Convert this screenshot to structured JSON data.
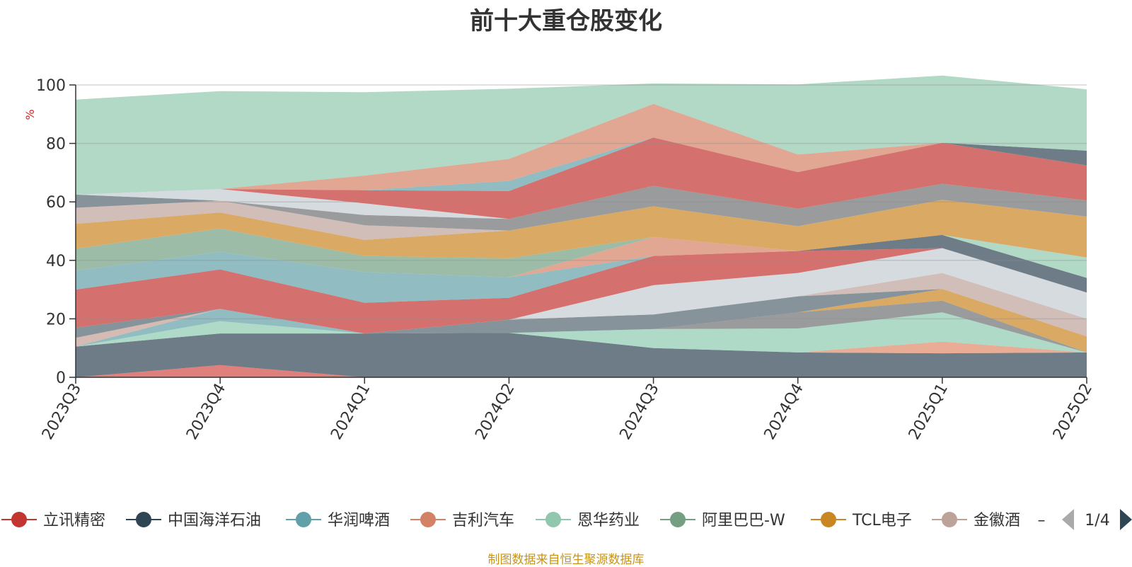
{
  "chart_data": {
    "type": "area",
    "stacked": true,
    "title": "前十大重仓股变化",
    "ylabel": "%",
    "ylim": [
      0,
      100
    ],
    "yticks": [
      0,
      20,
      40,
      60,
      80,
      100
    ],
    "grid": true,
    "legend_position": "bottom",
    "legend_page": "1/4",
    "legend_more_marker": "–",
    "categories": [
      "2023Q3",
      "2023Q4",
      "2024Q1",
      "2024Q2",
      "2024Q3",
      "2024Q4",
      "2025Q1",
      "2025Q2"
    ],
    "layers": [
      {
        "color": "#d14a44",
        "values": [
          0,
          4.2,
          0,
          0,
          0,
          0,
          0,
          0
        ]
      },
      {
        "color": "#2f4554",
        "values": [
          10.5,
          10.8,
          15,
          15.2,
          10,
          8.5,
          8.2,
          8.5
        ]
      },
      {
        "color": "#de8a66",
        "values": [
          0,
          0,
          0,
          0,
          0,
          0,
          4,
          0
        ]
      },
      {
        "color": "#8ccbaf",
        "values": [
          0,
          4.2,
          0,
          0,
          6.5,
          8.2,
          10,
          0
        ]
      },
      {
        "color": "#61a0a8",
        "values": [
          0,
          4.2,
          0,
          0,
          0,
          0,
          0,
          0
        ]
      },
      {
        "color": "#c49c94",
        "values": [
          3,
          0,
          0,
          0,
          0,
          0,
          0,
          0
        ]
      },
      {
        "color": "#6e7074",
        "values": [
          0,
          0,
          0,
          0,
          0,
          5.5,
          4,
          0
        ]
      },
      {
        "color": "#c23531",
        "values": [
          0,
          0,
          0,
          0,
          0,
          0,
          0,
          0
        ]
      },
      {
        "color": "#ca8622",
        "values": [
          0,
          0,
          0,
          0,
          0,
          0,
          4,
          5.5
        ]
      },
      {
        "color": "#546570",
        "values": [
          3.5,
          0,
          0,
          4.5,
          5,
          5.5,
          0,
          0
        ]
      },
      {
        "color": "#bda29a",
        "values": [
          0,
          0,
          0,
          0,
          0,
          0,
          5.5,
          6
        ]
      },
      {
        "color": "#c4ccd3",
        "values": [
          0,
          0,
          0,
          0,
          10,
          8,
          8.5,
          9
        ]
      },
      {
        "color": "#c23531",
        "values": [
          13,
          13.5,
          10.5,
          7.5,
          10,
          7.5,
          0,
          0
        ]
      },
      {
        "color": "#2f4554",
        "values": [
          0,
          0,
          0,
          0,
          0,
          0,
          4.5,
          5
        ]
      },
      {
        "color": "#61a0a8",
        "values": [
          6.5,
          6,
          10.5,
          7,
          0,
          0,
          0,
          0
        ]
      },
      {
        "color": "#d48265",
        "values": [
          0,
          0,
          0,
          0,
          6.5,
          0,
          0,
          0
        ]
      },
      {
        "color": "#91c7ae",
        "values": [
          0,
          0,
          0,
          0,
          0,
          0,
          0,
          7
        ]
      },
      {
        "color": "#749f83",
        "values": [
          7.5,
          8,
          5.5,
          6.5,
          0,
          0,
          0,
          0
        ]
      },
      {
        "color": "#ca8622",
        "values": [
          8.5,
          5.5,
          5.5,
          9.5,
          10.5,
          8.5,
          12,
          14
        ]
      },
      {
        "color": "#bda29a",
        "values": [
          5.5,
          4,
          5,
          0,
          0,
          0,
          0,
          0
        ]
      },
      {
        "color": "#6e7074",
        "values": [
          0,
          0,
          3.5,
          4,
          7,
          6,
          5.5,
          5.5
        ]
      },
      {
        "color": "#546570",
        "values": [
          4.5,
          0,
          0,
          0,
          0,
          0,
          0,
          0
        ]
      },
      {
        "color": "#c4ccd3",
        "values": [
          0,
          4,
          4,
          0,
          0,
          0,
          0,
          0
        ]
      },
      {
        "color": "#c23531",
        "values": [
          0,
          0,
          4.5,
          9.5,
          16.5,
          12.5,
          14,
          12
        ]
      },
      {
        "color": "#2f4554",
        "values": [
          0,
          0,
          0,
          0,
          0,
          0,
          0,
          5
        ]
      },
      {
        "color": "#61a0a8",
        "values": [
          0,
          0,
          0,
          3.5,
          0,
          0,
          0,
          0
        ]
      },
      {
        "color": "#d48265",
        "values": [
          0,
          0,
          5,
          7.5,
          11.5,
          6,
          0,
          0
        ]
      },
      {
        "color": "#91c7ae",
        "values": [
          32.5,
          33.5,
          28.5,
          24,
          7,
          24,
          23,
          21
        ]
      }
    ],
    "legend": [
      {
        "name": "立讯精密",
        "color": "#c23531"
      },
      {
        "name": "中国海洋石油",
        "color": "#2f4554"
      },
      {
        "name": "华润啤酒",
        "color": "#61a0a8"
      },
      {
        "name": "吉利汽车",
        "color": "#d48265"
      },
      {
        "name": "恩华药业",
        "color": "#91c7ae"
      },
      {
        "name": "阿里巴巴-W",
        "color": "#749f83"
      },
      {
        "name": "TCL电子",
        "color": "#ca8622"
      },
      {
        "name": "金徽酒",
        "color": "#bda29a"
      }
    ]
  },
  "source_note": "制图数据来自恒生聚源数据库"
}
